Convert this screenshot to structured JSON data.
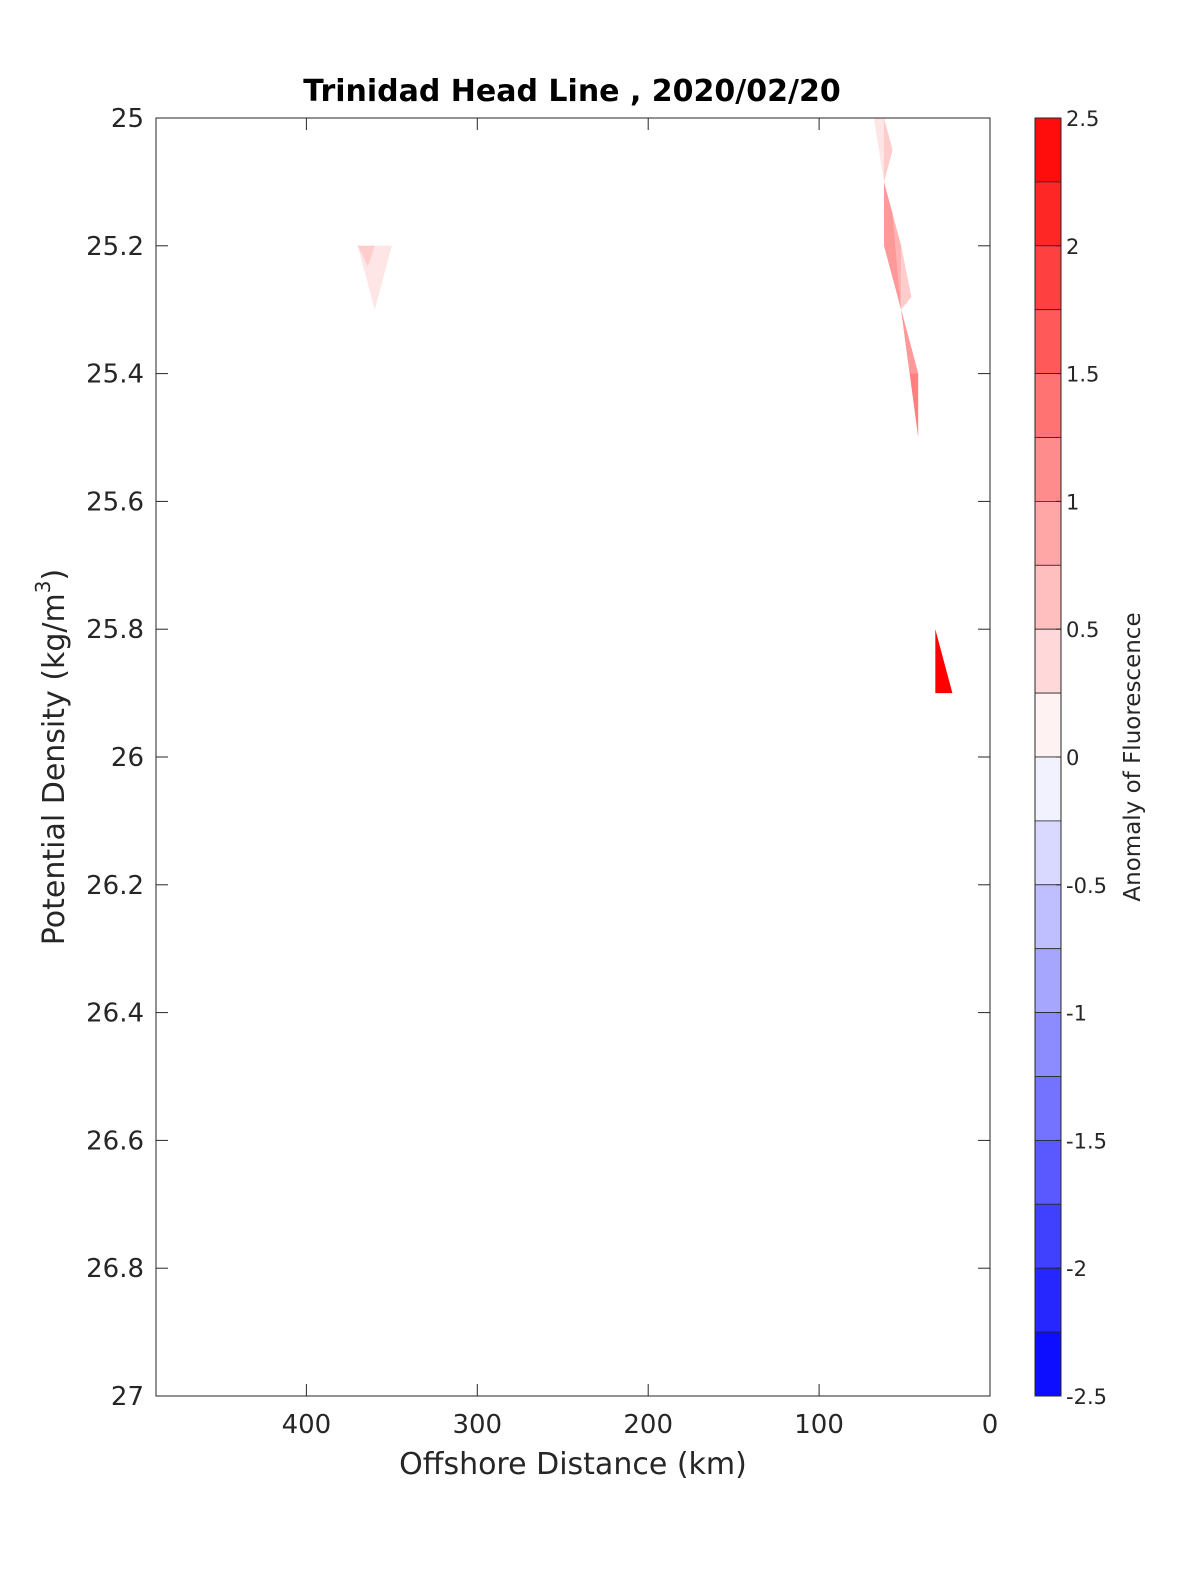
{
  "chart_data": {
    "type": "heatmap",
    "title": "Trinidad Head Line , 2020/02/20",
    "xlabel": "Offshore Distance (km)",
    "ylabel_main": "Potential Density (kg/m",
    "ylabel_sup": "3",
    "ylabel_tail": ")",
    "xlim": [
      0,
      488
    ],
    "x_reversed": true,
    "x_ticks": [
      400,
      300,
      200,
      100,
      0
    ],
    "ylim": [
      25,
      27
    ],
    "y_reversed": true,
    "y_ticks": [
      25,
      25.2,
      25.4,
      25.6,
      25.8,
      26,
      26.2,
      26.4,
      26.6,
      26.8,
      27
    ],
    "colorbar": {
      "label": "Anomaly of Fluorescence",
      "range": [
        -2.5,
        2.5
      ],
      "step": 0.25,
      "ticks": [
        2.5,
        2,
        1.5,
        1,
        0.5,
        0,
        -0.5,
        -1,
        -1.5,
        -2,
        -2.5
      ],
      "colors": {
        "negative": "#0000ff",
        "zero": "#ffffff",
        "positive": "#ff0000"
      }
    },
    "regions": [
      {
        "points": [
          [
            370,
            25.2
          ],
          [
            350,
            25.2
          ],
          [
            360,
            25.3
          ]
        ],
        "value": 0.25
      },
      {
        "points": [
          [
            370,
            25.2
          ],
          [
            360,
            25.2
          ],
          [
            364,
            25.232
          ]
        ],
        "value": 0.5
      },
      {
        "points": [
          [
            68,
            25.0
          ],
          [
            62,
            25.0
          ],
          [
            62,
            25.1
          ]
        ],
        "value": 0.25
      },
      {
        "points": [
          [
            62,
            25.1
          ],
          [
            57,
            25.05
          ],
          [
            62,
            25.0
          ]
        ],
        "value": 0.5
      },
      {
        "points": [
          [
            62,
            25.1
          ],
          [
            52,
            25.2
          ],
          [
            52,
            25.3
          ],
          [
            57,
            25.15
          ]
        ],
        "value": 0.75
      },
      {
        "points": [
          [
            62,
            25.1
          ],
          [
            57,
            25.15
          ],
          [
            52,
            25.3
          ],
          [
            62,
            25.2
          ]
        ],
        "value": 1.0
      },
      {
        "points": [
          [
            52,
            25.2
          ],
          [
            52,
            25.3
          ],
          [
            46,
            25.28
          ]
        ],
        "value": 0.5
      },
      {
        "points": [
          [
            52,
            25.3
          ],
          [
            42,
            25.5
          ],
          [
            42,
            25.4
          ],
          [
            47,
            25.35
          ]
        ],
        "value": 1.25
      },
      {
        "points": [
          [
            52,
            25.3
          ],
          [
            47,
            25.35
          ],
          [
            42,
            25.4
          ],
          [
            47,
            25.4
          ]
        ],
        "value": 1.0
      },
      {
        "points": [
          [
            32,
            25.8
          ],
          [
            32,
            25.9
          ],
          [
            22,
            25.9
          ]
        ],
        "value": 2.5
      }
    ]
  }
}
